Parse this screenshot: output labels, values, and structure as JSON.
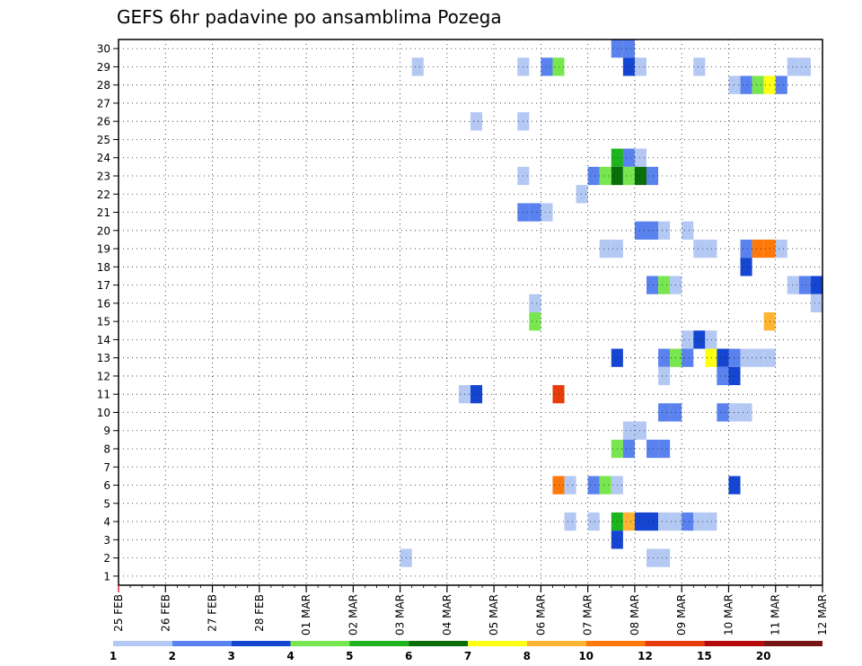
{
  "chart_data": {
    "type": "heatmap",
    "title": "GEFS 6hr padavine po ansamblima Pozega",
    "xlabel": "",
    "ylabel": "",
    "x_ticks": [
      "25 FEB",
      "26 FEB",
      "27 FEB",
      "28 FEB",
      "01 MAR",
      "02 MAR",
      "03 MAR",
      "04 MAR",
      "05 MAR",
      "06 MAR",
      "07 MAR",
      "08 MAR",
      "09 MAR",
      "10 MAR",
      "11 MAR",
      "12 MAR"
    ],
    "y_ticks": [
      "1",
      "2",
      "3",
      "4",
      "5",
      "6",
      "7",
      "8",
      "9",
      "10",
      "11",
      "12",
      "13",
      "14",
      "15",
      "16",
      "17",
      "18",
      "19",
      "20",
      "21",
      "22",
      "23",
      "24",
      "25",
      "26",
      "27",
      "28",
      "29",
      "30"
    ],
    "x_unit": "6-hour steps from 25 FEB 00Z (4 steps per day)",
    "grid": true,
    "colorbar": {
      "labels": [
        "1",
        "2",
        "3",
        "4",
        "5",
        "6",
        "7",
        "8",
        "10",
        "12",
        "15",
        "20"
      ],
      "colors": [
        "#b4c8f4",
        "#5a82ee",
        "#1446d2",
        "#78e64e",
        "#1eb41e",
        "#0a6e0a",
        "#ffff14",
        "#ffb432",
        "#ff780a",
        "#e63c0a",
        "#b40a0a",
        "#781414"
      ]
    },
    "cells": [
      {
        "member": 30,
        "step": 42,
        "level": 1
      },
      {
        "member": 30,
        "step": 43,
        "level": 1
      },
      {
        "member": 29,
        "step": 25,
        "level": 0
      },
      {
        "member": 29,
        "step": 34,
        "level": 0
      },
      {
        "member": 29,
        "step": 36,
        "level": 1
      },
      {
        "member": 29,
        "step": 37,
        "level": 3
      },
      {
        "member": 29,
        "step": 43,
        "level": 2
      },
      {
        "member": 29,
        "step": 44,
        "level": 0
      },
      {
        "member": 29,
        "step": 49,
        "level": 0
      },
      {
        "member": 29,
        "step": 57,
        "level": 0
      },
      {
        "member": 29,
        "step": 58,
        "level": 0
      },
      {
        "member": 28,
        "step": 52,
        "level": 0
      },
      {
        "member": 28,
        "step": 53,
        "level": 1
      },
      {
        "member": 28,
        "step": 54,
        "level": 3
      },
      {
        "member": 28,
        "step": 55,
        "level": 6
      },
      {
        "member": 28,
        "step": 56,
        "level": 1
      },
      {
        "member": 26,
        "step": 30,
        "level": 0
      },
      {
        "member": 26,
        "step": 34,
        "level": 0
      },
      {
        "member": 24,
        "step": 42,
        "level": 4
      },
      {
        "member": 24,
        "step": 43,
        "level": 1
      },
      {
        "member": 24,
        "step": 44,
        "level": 0
      },
      {
        "member": 23,
        "step": 34,
        "level": 0
      },
      {
        "member": 23,
        "step": 40,
        "level": 1
      },
      {
        "member": 23,
        "step": 41,
        "level": 3
      },
      {
        "member": 23,
        "step": 42,
        "level": 5
      },
      {
        "member": 23,
        "step": 43,
        "level": 3
      },
      {
        "member": 23,
        "step": 44,
        "level": 5
      },
      {
        "member": 23,
        "step": 45,
        "level": 1
      },
      {
        "member": 22,
        "step": 39,
        "level": 0
      },
      {
        "member": 21,
        "step": 34,
        "level": 1
      },
      {
        "member": 21,
        "step": 35,
        "level": 1
      },
      {
        "member": 21,
        "step": 36,
        "level": 0
      },
      {
        "member": 20,
        "step": 44,
        "level": 1
      },
      {
        "member": 20,
        "step": 45,
        "level": 1
      },
      {
        "member": 20,
        "step": 46,
        "level": 0
      },
      {
        "member": 20,
        "step": 48,
        "level": 0
      },
      {
        "member": 19,
        "step": 41,
        "level": 0
      },
      {
        "member": 19,
        "step": 42,
        "level": 0
      },
      {
        "member": 19,
        "step": 49,
        "level": 0
      },
      {
        "member": 19,
        "step": 50,
        "level": 0
      },
      {
        "member": 19,
        "step": 53,
        "level": 1
      },
      {
        "member": 19,
        "step": 54,
        "level": 8
      },
      {
        "member": 19,
        "step": 55,
        "level": 8
      },
      {
        "member": 19,
        "step": 56,
        "level": 0
      },
      {
        "member": 18,
        "step": 53,
        "level": 2
      },
      {
        "member": 17,
        "step": 45,
        "level": 1
      },
      {
        "member": 17,
        "step": 46,
        "level": 3
      },
      {
        "member": 17,
        "step": 47,
        "level": 0
      },
      {
        "member": 17,
        "step": 57,
        "level": 0
      },
      {
        "member": 17,
        "step": 58,
        "level": 1
      },
      {
        "member": 17,
        "step": 59,
        "level": 2
      },
      {
        "member": 16,
        "step": 35,
        "level": 0
      },
      {
        "member": 16,
        "step": 59,
        "level": 0
      },
      {
        "member": 15,
        "step": 35,
        "level": 3
      },
      {
        "member": 15,
        "step": 55,
        "level": 7
      },
      {
        "member": 14,
        "step": 48,
        "level": 0
      },
      {
        "member": 14,
        "step": 49,
        "level": 2
      },
      {
        "member": 14,
        "step": 50,
        "level": 0
      },
      {
        "member": 13,
        "step": 42,
        "level": 2
      },
      {
        "member": 13,
        "step": 46,
        "level": 1
      },
      {
        "member": 13,
        "step": 47,
        "level": 3
      },
      {
        "member": 13,
        "step": 48,
        "level": 1
      },
      {
        "member": 13,
        "step": 50,
        "level": 6
      },
      {
        "member": 13,
        "step": 51,
        "level": 2
      },
      {
        "member": 13,
        "step": 52,
        "level": 1
      },
      {
        "member": 13,
        "step": 53,
        "level": 0
      },
      {
        "member": 13,
        "step": 54,
        "level": 0
      },
      {
        "member": 13,
        "step": 55,
        "level": 0
      },
      {
        "member": 12,
        "step": 46,
        "level": 0
      },
      {
        "member": 12,
        "step": 51,
        "level": 1
      },
      {
        "member": 12,
        "step": 52,
        "level": 2
      },
      {
        "member": 11,
        "step": 29,
        "level": 0
      },
      {
        "member": 11,
        "step": 30,
        "level": 2
      },
      {
        "member": 11,
        "step": 37,
        "level": 9
      },
      {
        "member": 10,
        "step": 46,
        "level": 1
      },
      {
        "member": 10,
        "step": 47,
        "level": 1
      },
      {
        "member": 10,
        "step": 51,
        "level": 1
      },
      {
        "member": 10,
        "step": 52,
        "level": 0
      },
      {
        "member": 10,
        "step": 53,
        "level": 0
      },
      {
        "member": 9,
        "step": 43,
        "level": 0
      },
      {
        "member": 9,
        "step": 44,
        "level": 0
      },
      {
        "member": 8,
        "step": 42,
        "level": 3
      },
      {
        "member": 8,
        "step": 43,
        "level": 1
      },
      {
        "member": 8,
        "step": 45,
        "level": 1
      },
      {
        "member": 8,
        "step": 46,
        "level": 1
      },
      {
        "member": 6,
        "step": 37,
        "level": 8
      },
      {
        "member": 6,
        "step": 38,
        "level": 0
      },
      {
        "member": 6,
        "step": 40,
        "level": 1
      },
      {
        "member": 6,
        "step": 41,
        "level": 3
      },
      {
        "member": 6,
        "step": 42,
        "level": 0
      },
      {
        "member": 6,
        "step": 52,
        "level": 2
      },
      {
        "member": 4,
        "step": 38,
        "level": 0
      },
      {
        "member": 4,
        "step": 40,
        "level": 0
      },
      {
        "member": 4,
        "step": 42,
        "level": 4
      },
      {
        "member": 4,
        "step": 43,
        "level": 7
      },
      {
        "member": 4,
        "step": 44,
        "level": 2
      },
      {
        "member": 4,
        "step": 45,
        "level": 2
      },
      {
        "member": 4,
        "step": 46,
        "level": 0
      },
      {
        "member": 4,
        "step": 47,
        "level": 0
      },
      {
        "member": 4,
        "step": 48,
        "level": 1
      },
      {
        "member": 4,
        "step": 49,
        "level": 0
      },
      {
        "member": 4,
        "step": 50,
        "level": 0
      },
      {
        "member": 3,
        "step": 42,
        "level": 2
      },
      {
        "member": 2,
        "step": 24,
        "level": 0
      },
      {
        "member": 2,
        "step": 45,
        "level": 0
      },
      {
        "member": 2,
        "step": 46,
        "level": 0
      }
    ]
  }
}
